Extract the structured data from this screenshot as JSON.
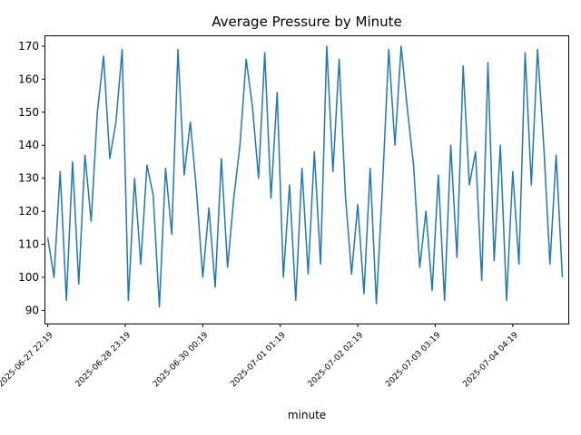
{
  "chart_data": {
    "type": "line",
    "title": "Average Pressure by Minute",
    "xlabel": "minute",
    "ylabel": "",
    "ylim": [
      86,
      173
    ],
    "yticks": [
      90,
      100,
      110,
      120,
      130,
      140,
      150,
      160,
      170
    ],
    "x_range": [
      "2025-06-27 21:33",
      "2025-07-04 22:14"
    ],
    "xticks": [
      "2025-06-27 22:19",
      "2025-06-28 23:19",
      "2025-06-30 00:19",
      "2025-07-01 01:19",
      "2025-07-02 02:19",
      "2025-07-03 03:19",
      "2025-07-04 04:19",
      "2025-07-05 05:19"
    ],
    "xtick_labels": [
      "2025-06-27 22:19",
      "2025-06-28 23:19",
      "2025-06-30 00:19",
      "2025-07-01 01:19",
      "2025-07-02 02:19",
      "2025-07-03 03:19",
      "2025-07-04 04:19",
      ""
    ],
    "grid": false,
    "legend": "none",
    "line_color": "#1f77b4",
    "series": [
      {
        "x": [
          "2025-06-27 22:19",
          "2025-06-28 00:19",
          "2025-06-28 02:19",
          "2025-06-28 04:19",
          "2025-06-28 06:19",
          "2025-06-28 08:19",
          "2025-06-28 10:19",
          "2025-06-28 12:19",
          "2025-06-28 14:19",
          "2025-06-28 16:19",
          "2025-06-28 18:19",
          "2025-06-28 20:19",
          "2025-06-28 22:19",
          "2025-06-29 00:19",
          "2025-06-29 02:19",
          "2025-06-29 04:19",
          "2025-06-29 06:19",
          "2025-06-29 08:19",
          "2025-06-29 10:19",
          "2025-06-29 12:19",
          "2025-06-29 14:19",
          "2025-06-29 16:19",
          "2025-06-29 18:19",
          "2025-06-29 20:19",
          "2025-06-29 22:19",
          "2025-06-30 00:19",
          "2025-06-30 02:19",
          "2025-06-30 04:19",
          "2025-06-30 06:19",
          "2025-06-30 08:19",
          "2025-06-30 10:19",
          "2025-06-30 12:19",
          "2025-06-30 14:19",
          "2025-06-30 16:19",
          "2025-06-30 18:19",
          "2025-06-30 20:19",
          "2025-06-30 22:19",
          "2025-07-01 00:19",
          "2025-07-01 02:19",
          "2025-07-01 04:19",
          "2025-07-01 06:19",
          "2025-07-01 08:19",
          "2025-07-01 10:19",
          "2025-07-01 12:19",
          "2025-07-01 14:19",
          "2025-07-01 16:19",
          "2025-07-01 18:19",
          "2025-07-01 20:19",
          "2025-07-01 22:19",
          "2025-07-02 00:19",
          "2025-07-02 02:19",
          "2025-07-02 04:19",
          "2025-07-02 06:19",
          "2025-07-02 08:19",
          "2025-07-02 10:19",
          "2025-07-02 12:19",
          "2025-07-02 14:19",
          "2025-07-02 16:19",
          "2025-07-02 18:19",
          "2025-07-02 20:19",
          "2025-07-02 22:19",
          "2025-07-03 00:19",
          "2025-07-03 02:19",
          "2025-07-03 04:19",
          "2025-07-03 06:19",
          "2025-07-03 08:19",
          "2025-07-03 10:19",
          "2025-07-03 12:19",
          "2025-07-03 14:19",
          "2025-07-03 16:19",
          "2025-07-03 18:19",
          "2025-07-03 20:19",
          "2025-07-03 22:19",
          "2025-07-04 00:19",
          "2025-07-04 02:19",
          "2025-07-04 04:19",
          "2025-07-04 06:19",
          "2025-07-04 08:19",
          "2025-07-04 10:19",
          "2025-07-04 12:19",
          "2025-07-04 14:19",
          "2025-07-04 16:19",
          "2025-07-04 18:19",
          "2025-07-04 20:19"
        ],
        "y": [
          112,
          100,
          132,
          93,
          135,
          98,
          137,
          117,
          150,
          167,
          136,
          147,
          169,
          93,
          130,
          104,
          134,
          125,
          91,
          133,
          113,
          169,
          131,
          147,
          126,
          100,
          121,
          97,
          136,
          103,
          124,
          140,
          166,
          152,
          130,
          168,
          124,
          156,
          100,
          128,
          93,
          133,
          101,
          138,
          104,
          170,
          132,
          166,
          125,
          101,
          122,
          95,
          133,
          92,
          128,
          169,
          140,
          170,
          151,
          134,
          103,
          120,
          96,
          131,
          93,
          140,
          106,
          164,
          128,
          138,
          99,
          165,
          105,
          140,
          93,
          132,
          104,
          168,
          128,
          169,
          140,
          104,
          137,
          100
        ]
      }
    ]
  }
}
